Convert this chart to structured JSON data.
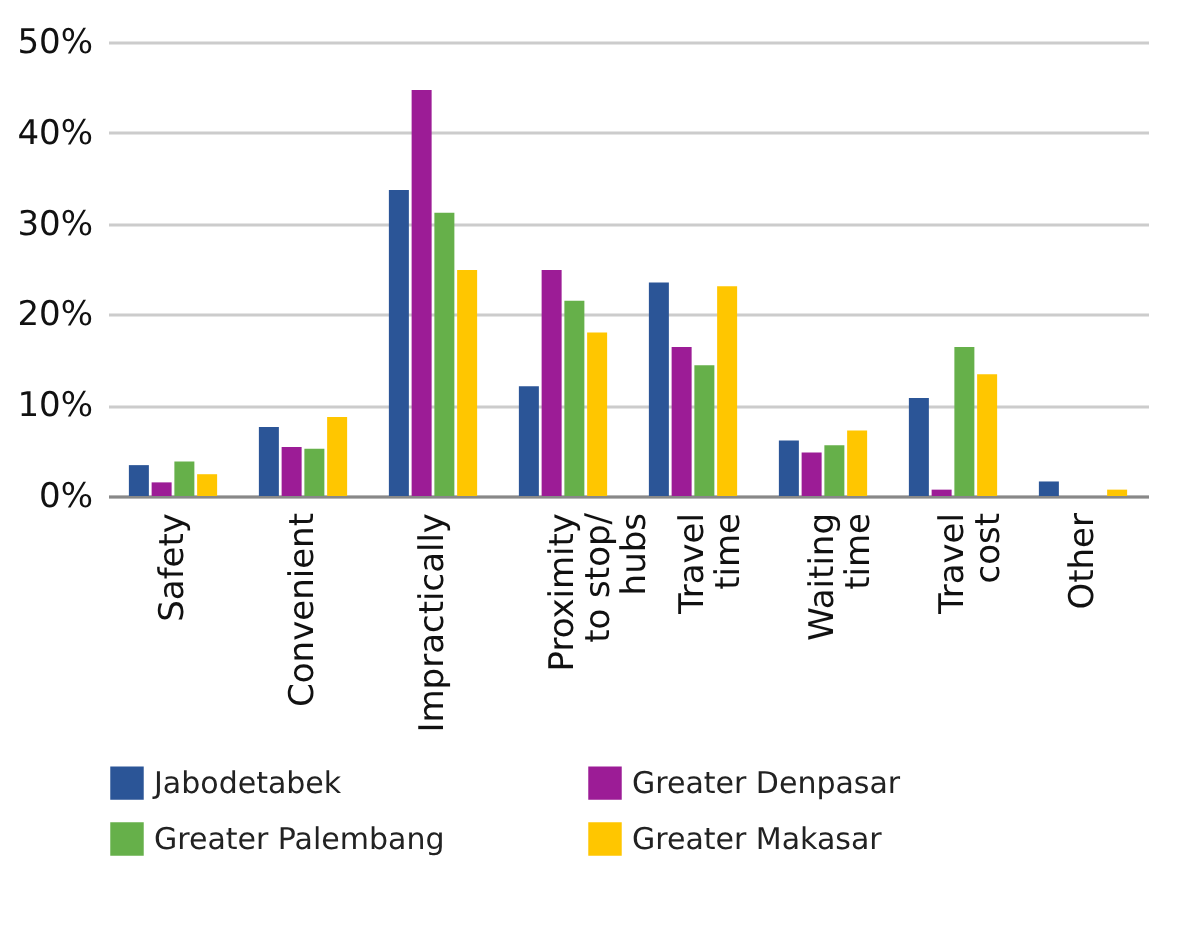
{
  "chart_data": {
    "type": "bar",
    "categories": [
      "Safety",
      "Convenient",
      "Impractically",
      "Proximity\nto stop/\nhubs",
      "Travel\ntime",
      "Waiting\ntime",
      "Travel\ncost",
      "Other"
    ],
    "series": [
      {
        "name": "Jabodetabek",
        "color": "#2b5597",
        "values": [
          3.4,
          7.6,
          33.7,
          12.1,
          23.5,
          6.1,
          10.8,
          1.6
        ]
      },
      {
        "name": "Greater Denpasar",
        "color": "#9c1c96",
        "values": [
          1.5,
          5.4,
          44.7,
          24.9,
          16.4,
          4.8,
          0.7,
          0
        ]
      },
      {
        "name": "Greater Palembang",
        "color": "#66b04a",
        "values": [
          3.8,
          5.2,
          31.2,
          21.5,
          14.4,
          5.6,
          16.4,
          0
        ]
      },
      {
        "name": "Greater Makasar",
        "color": "#ffc600",
        "values": [
          2.4,
          8.7,
          24.9,
          18.0,
          23.1,
          7.2,
          13.4,
          0.7
        ]
      }
    ],
    "ylim": [
      0,
      50
    ],
    "yticks": [
      {
        "value": 0,
        "label": "0%"
      },
      {
        "value": 10,
        "label": "10%"
      },
      {
        "value": 20,
        "label": "20%"
      },
      {
        "value": 30,
        "label": "30%"
      },
      {
        "value": 40,
        "label": "40%"
      },
      {
        "value": 50,
        "label": "50%"
      }
    ],
    "grid": "y",
    "legend": "bottom"
  }
}
